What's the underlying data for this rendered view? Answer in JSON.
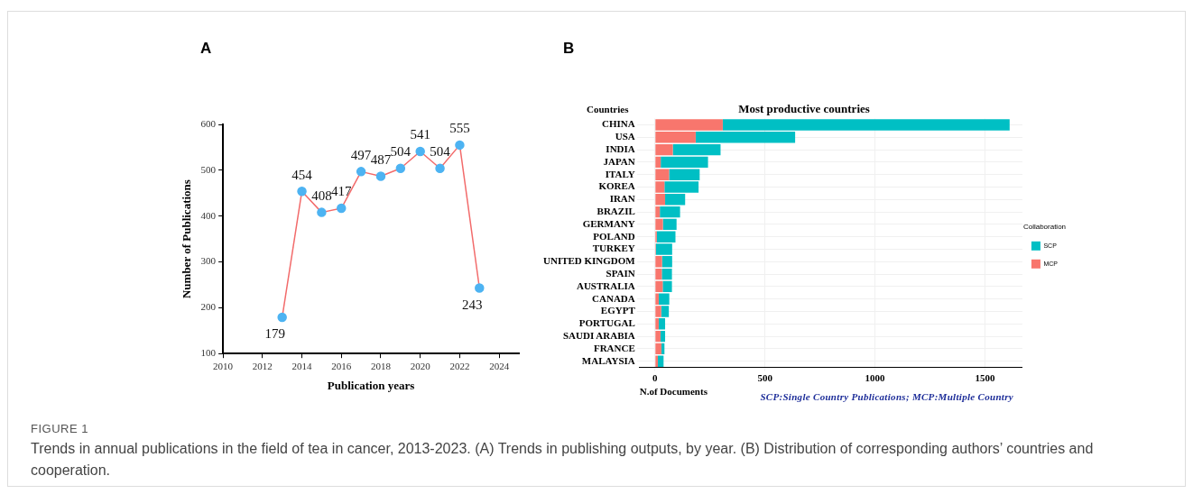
{
  "chart_data": [
    {
      "type": "line",
      "title": "A",
      "xlabel": "Publication years",
      "ylabel": "Number of Publications",
      "x": [
        2013,
        2014,
        2015,
        2016,
        2017,
        2018,
        2019,
        2020,
        2021,
        2022,
        2023
      ],
      "series": [
        {
          "color": "#f26b6b",
          "values": [
            179,
            454,
            408,
            417,
            497,
            487,
            504,
            541,
            504,
            555,
            243
          ]
        }
      ],
      "marker": "circle",
      "data_labels": true,
      "xlim": [
        2010,
        2025
      ],
      "xticks": [
        2010,
        2012,
        2014,
        2016,
        2018,
        2020,
        2022,
        2024
      ],
      "ylim": [
        100,
        600
      ],
      "yticks": [
        100,
        200,
        300,
        400,
        500,
        600
      ],
      "grid": false,
      "legend": false
    },
    {
      "type": "bar",
      "orientation": "horizontal",
      "stacked": true,
      "title": "B",
      "subtitle": "Most productive countries",
      "ylabel": "Countries",
      "xlabel": "N.of Documents",
      "legend_title": "Collaboration",
      "legend": "right",
      "grid": true,
      "categories": [
        "CHINA",
        "USA",
        "INDIA",
        "JAPAN",
        "ITALY",
        "KOREA",
        "IRAN",
        "BRAZIL",
        "GERMANY",
        "POLAND",
        "TURKEY",
        "UNITED KINGDOM",
        "SPAIN",
        "AUSTRALIA",
        "CANADA",
        "EGYPT",
        "PORTUGAL",
        "SAUDI ARABIA",
        "FRANCE",
        "MALAYSIA"
      ],
      "series": [
        {
          "name": "MCP",
          "color": "#f8766d",
          "values": [
            308,
            185,
            81,
            26,
            64,
            43,
            46,
            22,
            36,
            8,
            4,
            32,
            31,
            35,
            17,
            28,
            17,
            25,
            29,
            13
          ]
        },
        {
          "name": "SCP",
          "color": "#00bfc4",
          "values": [
            1304,
            452,
            217,
            215,
            139,
            155,
            91,
            92,
            62,
            85,
            74,
            46,
            46,
            42,
            48,
            35,
            29,
            21,
            14,
            26
          ]
        }
      ],
      "xlim": [
        -70,
        1670
      ],
      "xticks": [
        0,
        500,
        1000,
        1500
      ],
      "annotations": [
        "SCP:Single Country Publications; MCP:Multiple Country",
        "FIGURE 1",
        "Trends in annual publications in the field of tea in cancer, 2013-2023. (A) Trends in publishing outputs, by year. (B) Distribution of corresponding authors’ countries and cooperation."
      ]
    }
  ]
}
